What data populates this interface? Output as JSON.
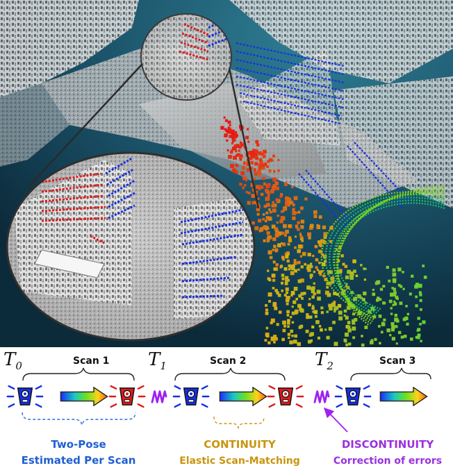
{
  "timeline": {
    "time_marks": [
      {
        "symbol": "T",
        "subscript": "0"
      },
      {
        "symbol": "T",
        "subscript": "1"
      },
      {
        "symbol": "T",
        "subscript": "2"
      }
    ],
    "scans": [
      {
        "label": "Scan 1"
      },
      {
        "label": "Scan 2"
      },
      {
        "label": "Scan 3"
      }
    ]
  },
  "captions": {
    "two_pose": {
      "line1": "Two-Pose",
      "line2": "Estimated Per Scan",
      "color": "#1f5fd1"
    },
    "continuity": {
      "line1": "CONTINUITY",
      "line2": "Elastic Scan-Matching",
      "color": "#c9950e"
    },
    "discontinuity": {
      "line1": "DISCONTINUITY",
      "line2": "Correction of errors",
      "color": "#9b30e0"
    }
  },
  "colors": {
    "start_pose": "#1530e6",
    "end_pose": "#e01a1a",
    "discontinuity": "#a020f0",
    "background_scene": "#1f5a70"
  },
  "icons": [
    "lidar-sensor-icon",
    "gradient-arrow-icon",
    "discontinuity-zigzag-icon"
  ]
}
